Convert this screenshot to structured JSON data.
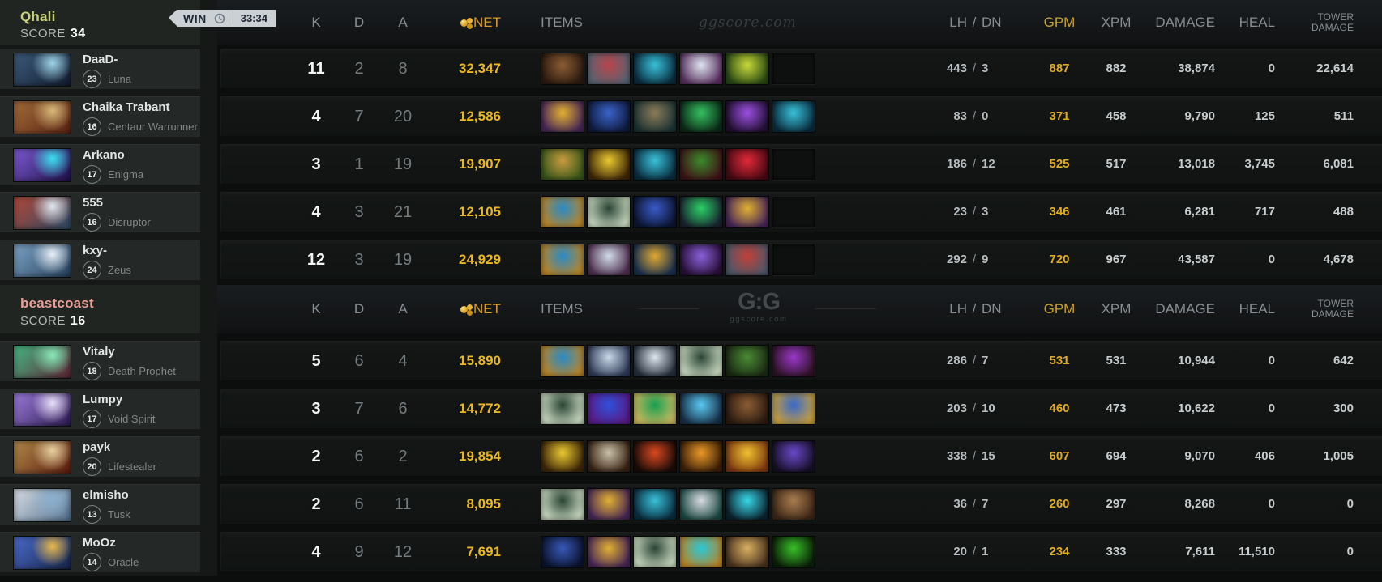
{
  "badge": {
    "result": "WIN",
    "time": "33:34"
  },
  "header": {
    "watermark": "ggscore.com",
    "logo_main": "G:G",
    "logo_sub": "ggscore.com"
  },
  "columns": {
    "k": "K",
    "d": "D",
    "a": "A",
    "net": "NET",
    "items": "ITEMS",
    "lh": "LH",
    "sep": "/",
    "dn": "DN",
    "gpm": "GPM",
    "xpm": "XPM",
    "damage": "DAMAGE",
    "heal": "HEAL",
    "tower1": "TOWER",
    "tower2": "DAMAGE"
  },
  "colors": {
    "gold": "#e9b71f",
    "team1": "#c9d17c",
    "team2": "#e79e97",
    "win_badge": "#cbd0d5",
    "k_white": "#f3f5f4"
  },
  "teams": [
    {
      "name": "Qhali",
      "score_label": "SCORE",
      "score": "34",
      "players": [
        {
          "name": "DaaD-",
          "level": "23",
          "hero": "Luna",
          "avatar": [
            "#3b5a7a",
            "#121c2e",
            "#9fd4e8"
          ]
        },
        {
          "name": "Chaika Trabant",
          "level": "16",
          "hero": "Centaur Warrunner",
          "avatar": [
            "#a06a38",
            "#5a2414",
            "#d8b87a"
          ]
        },
        {
          "name": "Arkano",
          "level": "17",
          "hero": "Enigma",
          "avatar": [
            "#7a5ad0",
            "#201048",
            "#3ae0f0"
          ]
        },
        {
          "name": "555",
          "level": "16",
          "hero": "Disruptor",
          "avatar": [
            "#b04838",
            "#2a4a66",
            "#e0e8f0"
          ]
        },
        {
          "name": "kxy-",
          "level": "24",
          "hero": "Zeus",
          "avatar": [
            "#7aa2c4",
            "#27415c",
            "#e8f0f8"
          ]
        }
      ],
      "rows": [
        {
          "k": "11",
          "d": "2",
          "a": "8",
          "net": "32,347",
          "lh": "443",
          "dn": "3",
          "gpm": "887",
          "xpm": "882",
          "damage": "38,874",
          "heal": "0",
          "tower": "22,614",
          "items": [
            {
              "n": "item-brown-boots",
              "c": [
                "#8a5c34",
                "#2e1c10"
              ]
            },
            {
              "n": "item-dragon-lance",
              "c": [
                "#b8444a",
                "#5a6472"
              ]
            },
            {
              "n": "item-blue-blade",
              "c": [
                "#38c0d8",
                "#0a2e40"
              ]
            },
            {
              "n": "item-silver-axe",
              "c": [
                "#dce4ee",
                "#5a3060"
              ]
            },
            {
              "n": "item-ethereal-blade",
              "c": [
                "#c8d83a",
                "#2a4a14"
              ]
            },
            null
          ]
        },
        {
          "k": "4",
          "d": "7",
          "a": "20",
          "net": "12,586",
          "lh": "83",
          "dn": "0",
          "gpm": "371",
          "xpm": "458",
          "damage": "9,790",
          "heal": "125",
          "tower": "511",
          "items": [
            {
              "n": "item-gold-bag",
              "c": [
                "#e0b030",
                "#4a2858"
              ]
            },
            {
              "n": "item-blue-cape",
              "c": [
                "#3a62c8",
                "#101c40"
              ]
            },
            {
              "n": "item-maul",
              "c": [
                "#8a7a58",
                "#1e3434"
              ]
            },
            {
              "n": "item-green-boots",
              "c": [
                "#34c060",
                "#0c2c18"
              ]
            },
            {
              "n": "item-purple-orb",
              "c": [
                "#9a50e0",
                "#241034"
              ]
            },
            {
              "n": "item-blue-blade",
              "c": [
                "#38c0d8",
                "#0a2e40"
              ]
            }
          ]
        },
        {
          "k": "3",
          "d": "1",
          "a": "19",
          "net": "19,907",
          "lh": "186",
          "dn": "12",
          "gpm": "525",
          "xpm": "517",
          "damage": "13,018",
          "heal": "3,745",
          "tower": "6,081",
          "items": [
            {
              "n": "item-gold-greaves",
              "c": [
                "#c89a40",
                "#3c5a1a"
              ]
            },
            {
              "n": "item-gold-flyer",
              "c": [
                "#e8c830",
                "#402808"
              ]
            },
            {
              "n": "item-blue-blade",
              "c": [
                "#38c0d8",
                "#0a2e40"
              ]
            },
            {
              "n": "item-green-hood",
              "c": [
                "#3a8a2a",
                "#401418"
              ]
            },
            {
              "n": "item-red-orb",
              "c": [
                "#e02838",
                "#4a0a14"
              ]
            },
            null
          ]
        },
        {
          "k": "4",
          "d": "3",
          "a": "21",
          "net": "12,105",
          "lh": "23",
          "dn": "3",
          "gpm": "346",
          "xpm": "461",
          "damage": "6,281",
          "heal": "717",
          "tower": "488",
          "items": [
            {
              "n": "item-arcane-boots",
              "c": [
                "#2a8ac8",
                "#b8862a"
              ]
            },
            {
              "n": "item-magic-wand",
              "c": [
                "#2a4434",
                "#c8d8c0"
              ]
            },
            {
              "n": "item-glimmer-cape",
              "c": [
                "#3a5ac8",
                "#0c1634"
              ]
            },
            {
              "n": "item-green-orb",
              "c": [
                "#2ad064",
                "#1a2430"
              ]
            },
            {
              "n": "item-gold-bag",
              "c": [
                "#e0b030",
                "#4a2858"
              ]
            },
            null
          ]
        },
        {
          "k": "12",
          "d": "3",
          "a": "19",
          "net": "24,929",
          "lh": "292",
          "dn": "9",
          "gpm": "720",
          "xpm": "967",
          "damage": "43,587",
          "heal": "0",
          "tower": "4,678",
          "items": [
            {
              "n": "item-arcane-boots",
              "c": [
                "#2a8ac8",
                "#b8862a"
              ]
            },
            {
              "n": "item-white-blade",
              "c": [
                "#d0dce8",
                "#503050"
              ]
            },
            {
              "n": "item-gold-scepter",
              "c": [
                "#e0a830",
                "#1a3050"
              ]
            },
            {
              "n": "item-purple-mask",
              "c": [
                "#8a60d8",
                "#281038"
              ]
            },
            {
              "n": "item-red-lance",
              "c": [
                "#c04038",
                "#505868"
              ]
            },
            null
          ]
        }
      ]
    },
    {
      "name": "beastcoast",
      "score_label": "SCORE",
      "score": "16",
      "players": [
        {
          "name": "Vitaly",
          "level": "18",
          "hero": "Death Prophet",
          "avatar": [
            "#46b684",
            "#5e2433",
            "#8ae8b8"
          ]
        },
        {
          "name": "Lumpy",
          "level": "17",
          "hero": "Void Spirit",
          "avatar": [
            "#9a7ad8",
            "#2c1a50",
            "#e8e0f8"
          ]
        },
        {
          "name": "payk",
          "level": "20",
          "hero": "Lifestealer",
          "avatar": [
            "#b08848",
            "#5c1c10",
            "#e8d0a0"
          ]
        },
        {
          "name": "elmisho",
          "level": "13",
          "hero": "Tusk",
          "avatar": [
            "#d8dde4",
            "#51708e",
            "#8ab0d0"
          ]
        },
        {
          "name": "MoOz",
          "level": "14",
          "hero": "Oracle",
          "avatar": [
            "#4a6ac8",
            "#16254a",
            "#e8b84a"
          ]
        }
      ],
      "rows": [
        {
          "k": "5",
          "d": "6",
          "a": "4",
          "net": "15,890",
          "lh": "286",
          "dn": "7",
          "gpm": "531",
          "xpm": "531",
          "damage": "10,944",
          "heal": "0",
          "tower": "642",
          "items": [
            {
              "n": "item-arcane-boots",
              "c": [
                "#2a8ac8",
                "#b8862a"
              ]
            },
            {
              "n": "item-shivas-guard",
              "c": [
                "#c8d8e8",
                "#303c58"
              ]
            },
            {
              "n": "item-white-hood",
              "c": [
                "#dce4ec",
                "#26303c"
              ]
            },
            {
              "n": "item-magic-wand",
              "c": [
                "#2a4434",
                "#c8d8c0"
              ]
            },
            {
              "n": "item-green-crown",
              "c": [
                "#4a8a34",
                "#1c2c14"
              ]
            },
            {
              "n": "item-purple-cloak",
              "c": [
                "#9838c8",
                "#301428"
              ]
            }
          ]
        },
        {
          "k": "3",
          "d": "7",
          "a": "6",
          "net": "14,772",
          "lh": "203",
          "dn": "10",
          "gpm": "460",
          "xpm": "473",
          "damage": "10,622",
          "heal": "0",
          "tower": "300",
          "items": [
            {
              "n": "item-magic-wand",
              "c": [
                "#2a4434",
                "#c8d8c0"
              ]
            },
            {
              "n": "item-blue-scepter",
              "c": [
                "#3050d8",
                "#581c88"
              ]
            },
            {
              "n": "item-green-sword",
              "c": [
                "#18a050",
                "#c8b860"
              ]
            },
            {
              "n": "item-blue-bottle",
              "c": [
                "#58c8f0",
                "#183048"
              ]
            },
            {
              "n": "item-brown-boots",
              "c": [
                "#8a5c34",
                "#2e1c10"
              ]
            },
            {
              "n": "item-blue-sword",
              "c": [
                "#3868c8",
                "#c8a040"
              ]
            }
          ]
        },
        {
          "k": "2",
          "d": "6",
          "a": "2",
          "net": "19,854",
          "lh": "338",
          "dn": "15",
          "gpm": "607",
          "xpm": "694",
          "damage": "9,070",
          "heal": "406",
          "tower": "1,005",
          "items": [
            {
              "n": "item-gold-flyer",
              "c": [
                "#e8c830",
                "#402808"
              ]
            },
            {
              "n": "item-white-glove",
              "c": [
                "#c8c0a8",
                "#3a2414"
              ]
            },
            {
              "n": "item-crossed-swords",
              "c": [
                "#d84820",
                "#1c0c08"
              ]
            },
            {
              "n": "item-gold-fist",
              "c": [
                "#e89828",
                "#3c2008"
              ]
            },
            {
              "n": "item-golden-blade",
              "c": [
                "#f0c030",
                "#803c10"
              ]
            },
            {
              "n": "item-purple-boots",
              "c": [
                "#6848c8",
                "#181028"
              ]
            }
          ]
        },
        {
          "k": "2",
          "d": "6",
          "a": "11",
          "net": "8,095",
          "lh": "36",
          "dn": "7",
          "gpm": "260",
          "xpm": "297",
          "damage": "8,268",
          "heal": "0",
          "tower": "0",
          "items": [
            {
              "n": "item-magic-wand",
              "c": [
                "#2a4434",
                "#c8d8c0"
              ]
            },
            {
              "n": "item-gold-bag",
              "c": [
                "#e0b030",
                "#4a2858"
              ]
            },
            {
              "n": "item-blue-blade",
              "c": [
                "#38c0d8",
                "#0a2e40"
              ]
            },
            {
              "n": "item-white-swirl",
              "c": [
                "#d8dce0",
                "#1e4a46"
              ]
            },
            {
              "n": "item-water-drop",
              "c": [
                "#38d8e8",
                "#0c2430"
              ]
            },
            {
              "n": "item-brown-boots",
              "c": [
                "#a87c50",
                "#402818"
              ]
            }
          ]
        },
        {
          "k": "4",
          "d": "9",
          "a": "12",
          "net": "7,691",
          "lh": "20",
          "dn": "1",
          "gpm": "234",
          "xpm": "333",
          "damage": "7,611",
          "heal": "11,510",
          "tower": "0",
          "items": [
            {
              "n": "item-blue-cape",
              "c": [
                "#3858b8",
                "#0c1430"
              ]
            },
            {
              "n": "item-gold-bag",
              "c": [
                "#e0b030",
                "#4a2858"
              ]
            },
            {
              "n": "item-magic-wand",
              "c": [
                "#2a4434",
                "#c8d8c0"
              ]
            },
            {
              "n": "item-cyan-boot",
              "c": [
                "#28c8d8",
                "#b8862a"
              ]
            },
            {
              "n": "item-gold-creature",
              "c": [
                "#d8b060",
                "#4c3420"
              ]
            },
            {
              "n": "item-green-flask",
              "c": [
                "#38c028",
                "#0c2008"
              ]
            }
          ]
        }
      ]
    }
  ]
}
